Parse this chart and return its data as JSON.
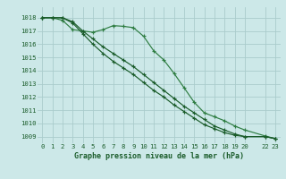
{
  "background_color": "#cce8e8",
  "grid_color": "#aacccc",
  "line_color_dark": "#1a5c2a",
  "line_color_mid": "#2e7d42",
  "xlabel": "Graphe pression niveau de la mer (hPa)",
  "ylim": [
    1008.5,
    1018.8
  ],
  "xlim": [
    -0.5,
    23.5
  ],
  "yticks": [
    1009,
    1010,
    1011,
    1012,
    1013,
    1014,
    1015,
    1016,
    1017,
    1018
  ],
  "xticks": [
    0,
    1,
    2,
    3,
    4,
    5,
    6,
    7,
    8,
    9,
    10,
    11,
    12,
    13,
    14,
    15,
    16,
    17,
    18,
    19,
    20,
    22,
    23
  ],
  "xtick_labels": [
    "0",
    "1",
    "2",
    "3",
    "4",
    "5",
    "6",
    "7",
    "8",
    "9",
    "10",
    "11",
    "12",
    "13",
    "14",
    "15",
    "16",
    "17",
    "18",
    "19",
    "20",
    "22",
    "23"
  ],
  "line1_x": [
    0,
    1,
    2,
    3,
    4,
    5,
    6,
    7,
    8,
    9,
    10,
    11,
    12,
    13,
    14,
    15,
    16,
    17,
    18,
    19,
    20,
    22,
    23
  ],
  "line1_y": [
    1018.0,
    1018.0,
    1017.8,
    1017.1,
    1017.0,
    1016.9,
    1017.1,
    1017.4,
    1017.35,
    1017.25,
    1016.6,
    1015.5,
    1014.8,
    1013.8,
    1012.7,
    1011.6,
    1010.8,
    1010.5,
    1010.2,
    1009.8,
    1009.5,
    1009.05,
    1008.85
  ],
  "line2_x": [
    0,
    1,
    2,
    3,
    4,
    5,
    6,
    7,
    8,
    9,
    10,
    11,
    12,
    13,
    14,
    15,
    16,
    17,
    18,
    19,
    20,
    22,
    23
  ],
  "line2_y": [
    1018.0,
    1018.0,
    1018.0,
    1017.6,
    1016.8,
    1016.0,
    1015.3,
    1014.7,
    1014.2,
    1013.7,
    1013.1,
    1012.5,
    1012.0,
    1011.4,
    1010.9,
    1010.4,
    1009.9,
    1009.6,
    1009.3,
    1009.1,
    1009.0,
    1009.0,
    1008.85
  ],
  "line3_x": [
    0,
    1,
    2,
    3,
    4,
    5,
    6,
    7,
    8,
    9,
    10,
    11,
    12,
    13,
    14,
    15,
    16,
    17,
    18,
    19,
    20,
    22,
    23
  ],
  "line3_y": [
    1018.0,
    1018.0,
    1018.0,
    1017.7,
    1017.0,
    1016.4,
    1015.8,
    1015.3,
    1014.8,
    1014.3,
    1013.7,
    1013.1,
    1012.5,
    1011.9,
    1011.3,
    1010.8,
    1010.3,
    1009.8,
    1009.5,
    1009.2,
    1009.0,
    1009.0,
    1008.85
  ],
  "tick_fontsize": 5.2,
  "xlabel_fontsize": 6.0
}
